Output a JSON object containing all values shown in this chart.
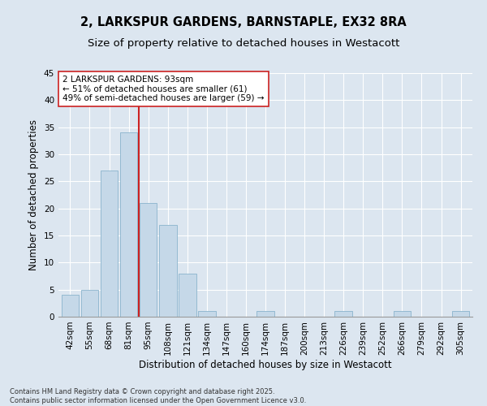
{
  "title_line1": "2, LARKSPUR GARDENS, BARNSTAPLE, EX32 8RA",
  "title_line2": "Size of property relative to detached houses in Westacott",
  "xlabel": "Distribution of detached houses by size in Westacott",
  "ylabel": "Number of detached properties",
  "bar_labels": [
    "42sqm",
    "55sqm",
    "68sqm",
    "81sqm",
    "95sqm",
    "108sqm",
    "121sqm",
    "134sqm",
    "147sqm",
    "160sqm",
    "174sqm",
    "187sqm",
    "200sqm",
    "213sqm",
    "226sqm",
    "239sqm",
    "252sqm",
    "266sqm",
    "279sqm",
    "292sqm",
    "305sqm"
  ],
  "bar_values": [
    4,
    5,
    27,
    34,
    21,
    17,
    8,
    1,
    0,
    0,
    1,
    0,
    0,
    0,
    1,
    0,
    0,
    1,
    0,
    0,
    1
  ],
  "bar_color": "#c5d8e8",
  "bar_edge_color": "#8ab4cc",
  "vline_color": "#cc2222",
  "annotation_text": "2 LARKSPUR GARDENS: 93sqm\n← 51% of detached houses are smaller (61)\n49% of semi-detached houses are larger (59) →",
  "annotation_box_color": "#ffffff",
  "annotation_box_edge": "#cc2222",
  "ylim": [
    0,
    45
  ],
  "yticks": [
    0,
    5,
    10,
    15,
    20,
    25,
    30,
    35,
    40,
    45
  ],
  "background_color": "#dce6f0",
  "footer_text": "Contains HM Land Registry data © Crown copyright and database right 2025.\nContains public sector information licensed under the Open Government Licence v3.0.",
  "title_fontsize": 10.5,
  "subtitle_fontsize": 9.5,
  "axis_label_fontsize": 8.5,
  "tick_fontsize": 7.5,
  "annotation_fontsize": 7.5
}
